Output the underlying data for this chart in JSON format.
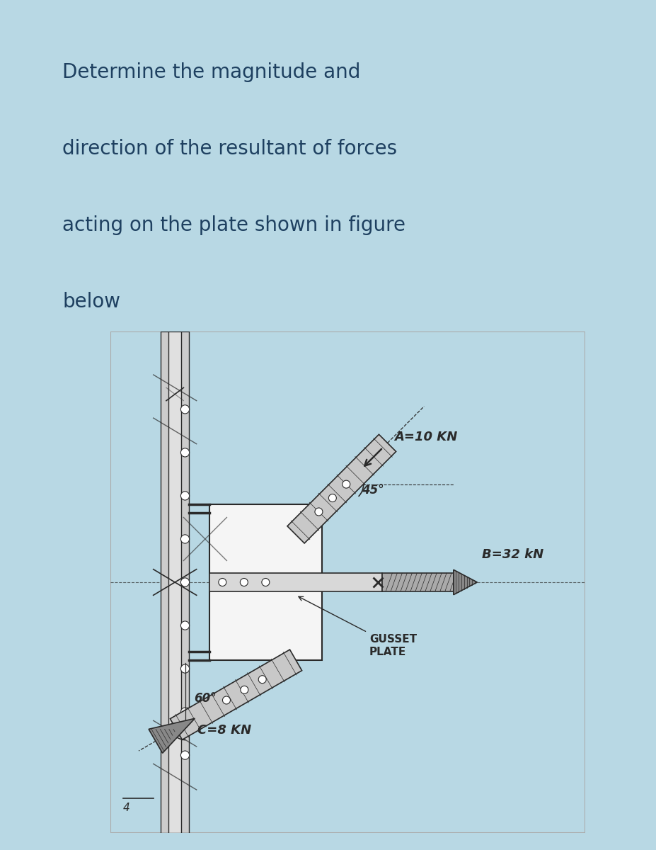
{
  "bg_outer": "#b8d8e4",
  "bg_text": "#c8e4ed",
  "bg_sketch": "#ffffff",
  "text_color": "#1e4060",
  "sketch_color": "#2a2a2a",
  "title_lines": [
    "Determine the magnitude and",
    "direction of the resultant of forces",
    "acting on the plate shown in figure",
    "below"
  ],
  "title_fontsize": 20,
  "label_A": "A=10 KN",
  "label_B": "B=32 kN",
  "label_C": "C=8 KN",
  "angle_A": "45°",
  "angle_C": "60°",
  "gusset_label": "GUSSET\nPLATE"
}
